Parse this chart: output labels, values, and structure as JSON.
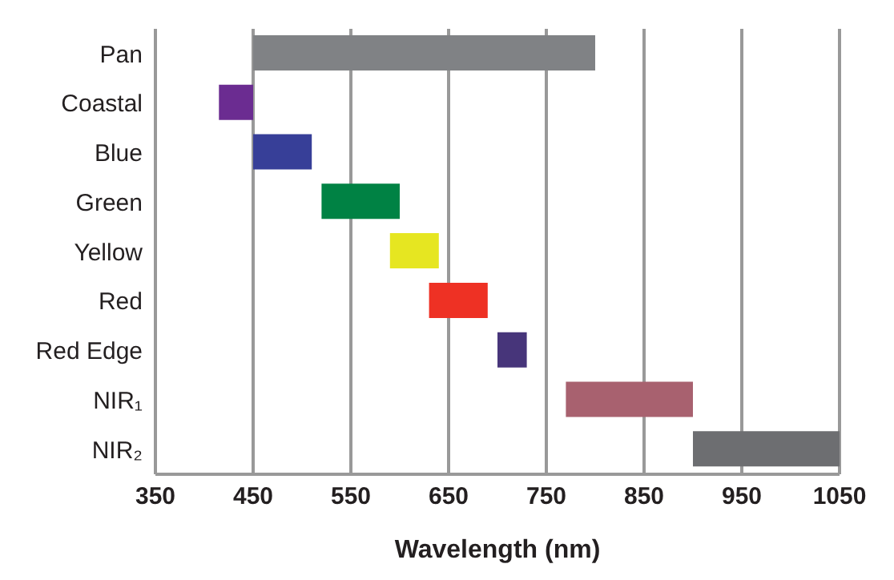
{
  "chart_data": {
    "type": "bar",
    "orientation": "horizontal",
    "xlabel": "Wavelength (nm)",
    "categories": [
      "Pan",
      "Coastal",
      "Blue",
      "Green",
      "Yellow",
      "Red",
      "Red Edge",
      "NIR₁",
      "NIR₂"
    ],
    "base": [
      450,
      415,
      450,
      520,
      590,
      630,
      700,
      770,
      900
    ],
    "values": [
      350,
      35,
      60,
      80,
      50,
      60,
      30,
      130,
      150
    ],
    "colors": [
      "#808285",
      "#6b2c91",
      "#373f98",
      "#008244",
      "#e6e621",
      "#ee3124",
      "#47357a",
      "#a8616f",
      "#6d6e71"
    ],
    "xlim": [
      350,
      1050
    ],
    "xticks": [
      350,
      450,
      550,
      650,
      750,
      850,
      950,
      1050
    ],
    "grid": "x",
    "legend": false
  }
}
